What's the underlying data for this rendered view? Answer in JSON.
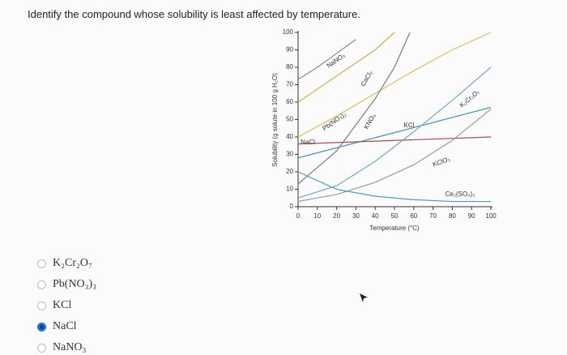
{
  "question": "Identify the compound whose solubility is least affected by temperature.",
  "chart_data": {
    "type": "line",
    "xlabel": "Temperature (°C)",
    "ylabel": "Solubility (g solute in 100 g H₂O)",
    "xlim": [
      0,
      100
    ],
    "ylim": [
      0,
      100
    ],
    "xticks": [
      0,
      10,
      20,
      30,
      40,
      50,
      60,
      70,
      80,
      90,
      100
    ],
    "yticks": [
      0,
      10,
      20,
      30,
      40,
      50,
      60,
      70,
      80,
      90,
      100
    ],
    "series": [
      {
        "name": "NaNO₃",
        "color": "#8a8a8a",
        "x": [
          0,
          10,
          20,
          30
        ],
        "values": [
          73,
          80,
          88,
          96
        ]
      },
      {
        "name": "CaCl₂",
        "color": "#c9b24a",
        "x": [
          0,
          20,
          40,
          50
        ],
        "values": [
          60,
          75,
          90,
          100
        ]
      },
      {
        "name": "Pb(NO₃)₂",
        "color": "#d8c060",
        "x": [
          0,
          20,
          40,
          60,
          80,
          100
        ],
        "values": [
          40,
          52,
          65,
          78,
          90,
          100
        ]
      },
      {
        "name": "KNO₃",
        "color": "#7a7a7a",
        "x": [
          0,
          20,
          40,
          50,
          58
        ],
        "values": [
          13,
          32,
          62,
          80,
          100
        ]
      },
      {
        "name": "KCl",
        "color": "#3f8fb0",
        "x": [
          0,
          100
        ],
        "values": [
          28,
          57
        ]
      },
      {
        "name": "NaCl",
        "color": "#a05050",
        "x": [
          0,
          100
        ],
        "values": [
          36,
          40
        ]
      },
      {
        "name": "KClO₃",
        "color": "#9a9a9a",
        "x": [
          0,
          20,
          40,
          60,
          80,
          100
        ],
        "values": [
          3,
          7,
          14,
          24,
          38,
          56
        ]
      },
      {
        "name": "Ce₂(SO₄)₃",
        "color": "#4a9fb8",
        "x": [
          0,
          20,
          40,
          60,
          80,
          100
        ],
        "values": [
          20,
          10,
          6,
          4,
          3,
          3
        ]
      },
      {
        "name": "K₂Cr₂O₇",
        "color": "#6fa8c8",
        "x": [
          0,
          20,
          40,
          60,
          80,
          100
        ],
        "values": [
          5,
          12,
          26,
          43,
          61,
          80
        ]
      }
    ]
  },
  "options": [
    "K₂Cr₂O₇",
    "Pb(NO₃)₃",
    "KCl",
    "NaCl",
    "NaNO₃"
  ],
  "selected": 3
}
